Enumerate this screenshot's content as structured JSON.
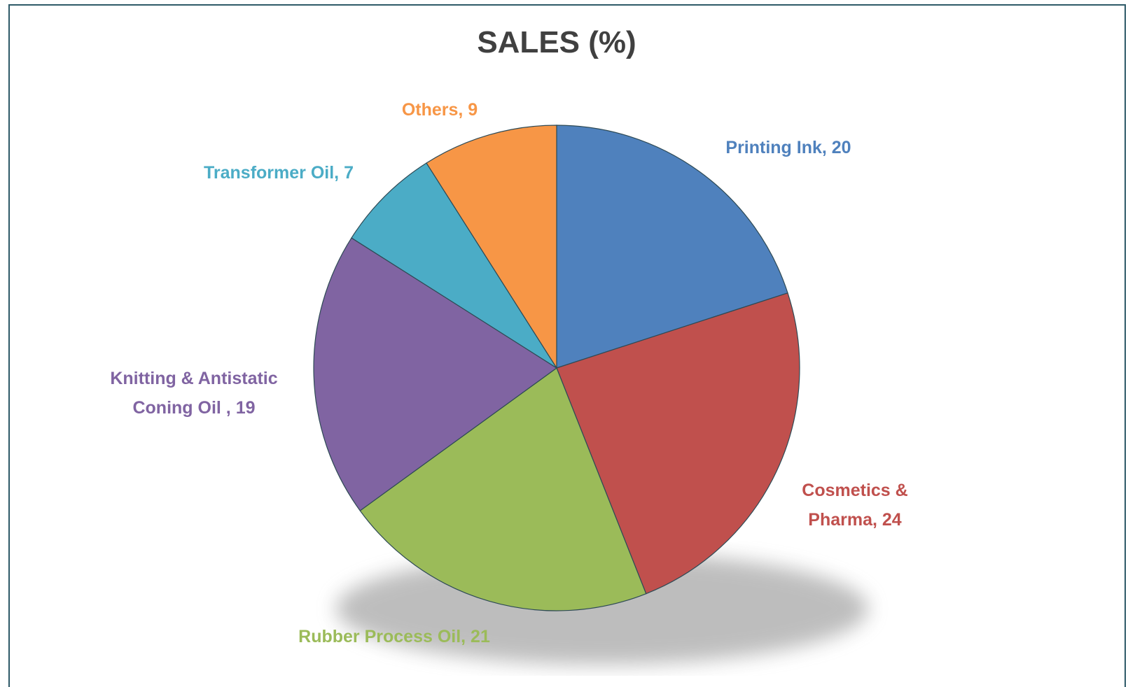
{
  "chart_data": {
    "type": "pie",
    "title": "SALES (%)",
    "values": [
      20,
      24,
      21,
      19,
      7,
      9
    ],
    "value_labels": [
      "Printing Ink, 20",
      "Cosmetics & Pharma, 24",
      "Rubber Process Oil, 21",
      "Knitting & Antistatic Coning Oil , 19",
      "Transformer Oil, 7",
      "Others, 9"
    ],
    "colors": [
      "#4f81bd",
      "#c0504d",
      "#9bbb59",
      "#8064a2",
      "#4bacc6",
      "#f79646"
    ]
  }
}
